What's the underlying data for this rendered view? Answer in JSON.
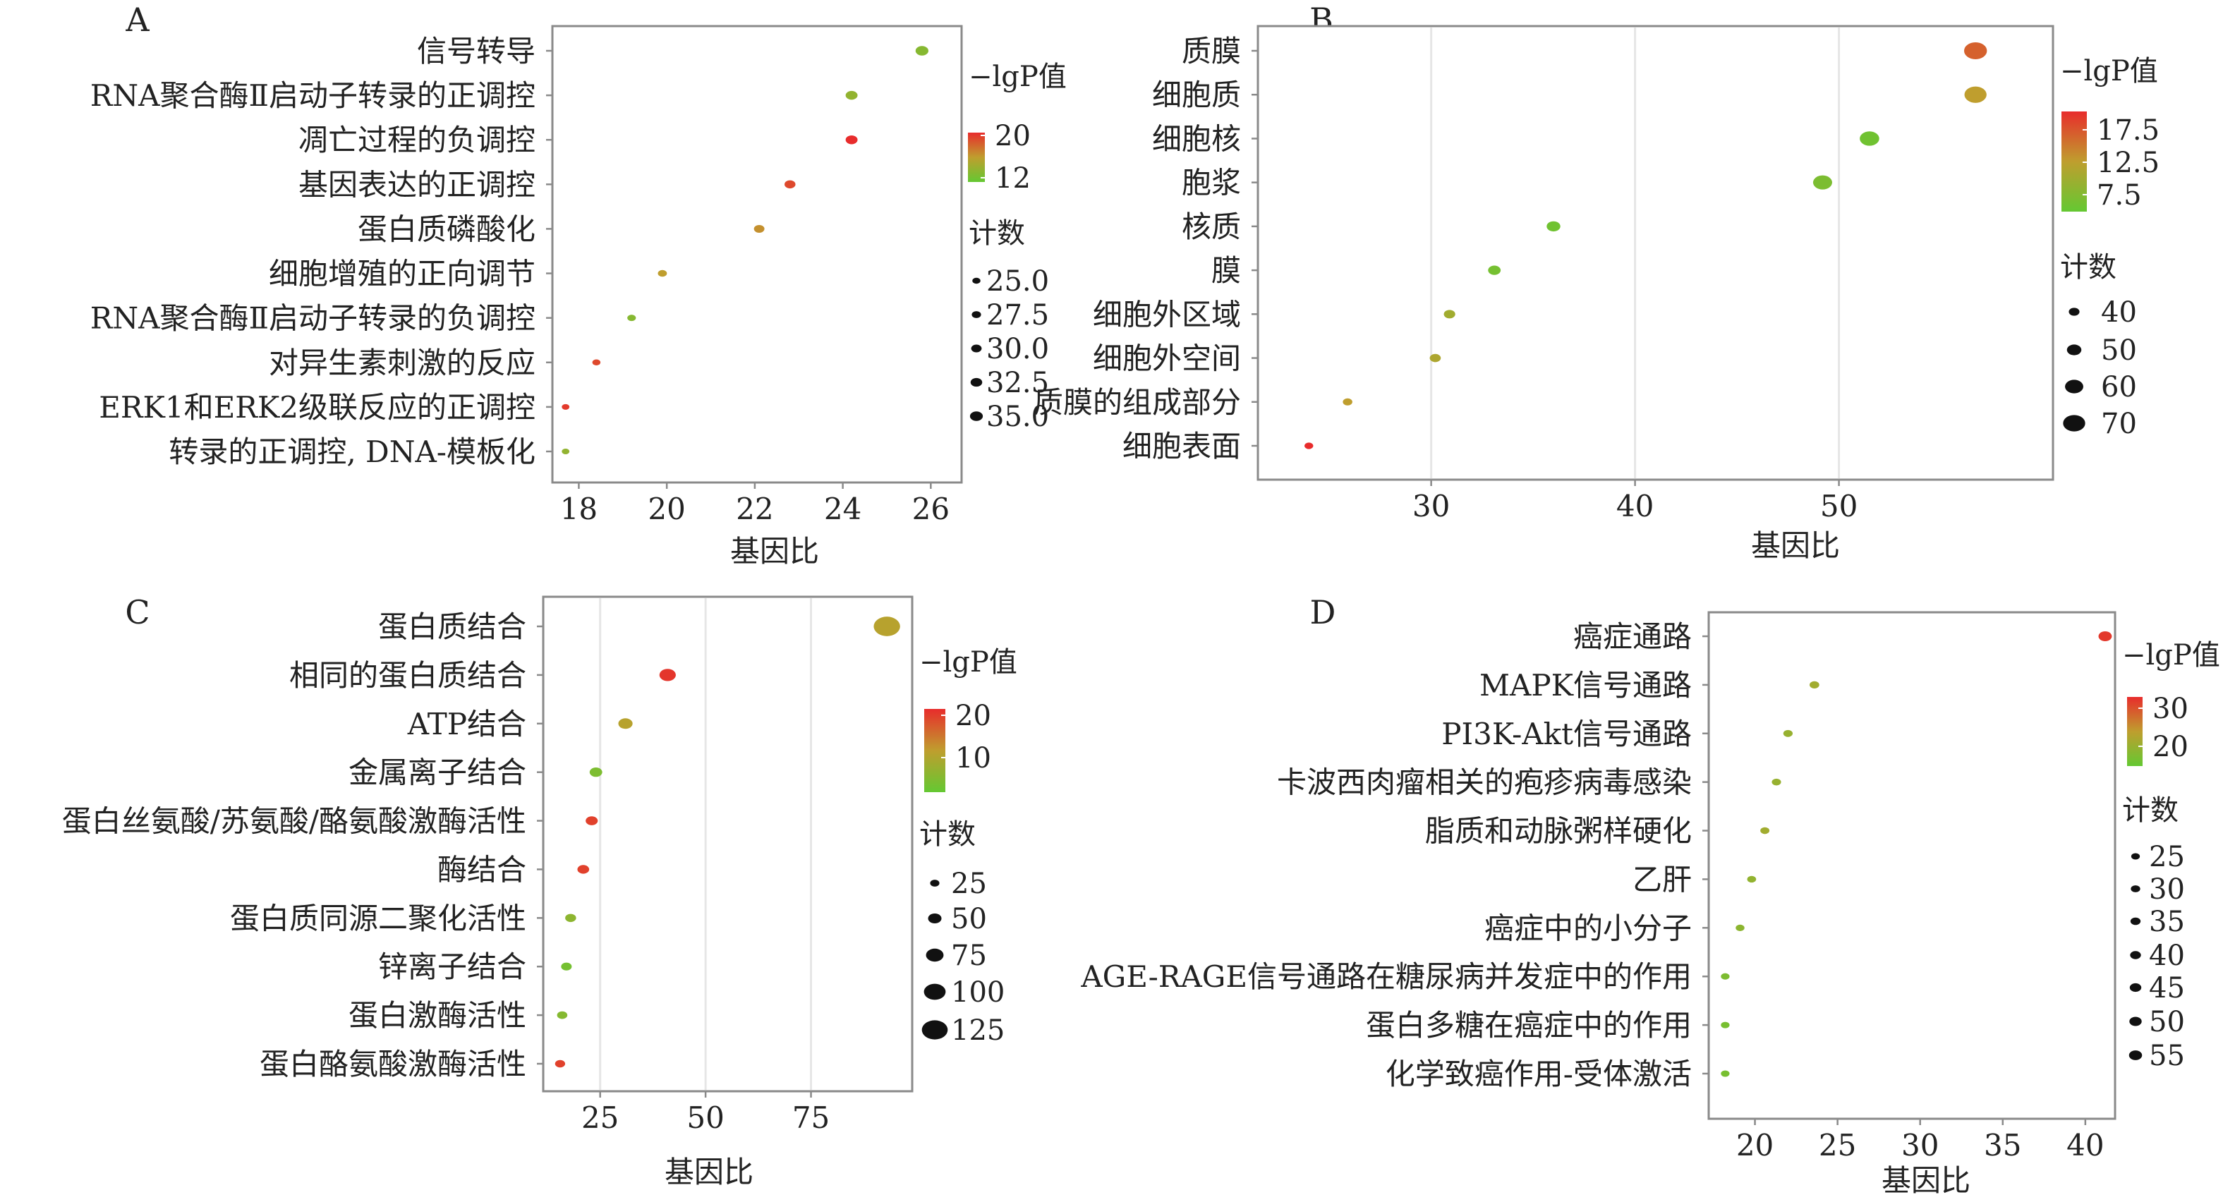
{
  "colors": {
    "low": "#64c832",
    "mid": "#bf9e2e",
    "high": "#e82c2c",
    "dot_key": "#111111"
  },
  "chart_data": [
    {
      "panel": "A",
      "type": "scatter",
      "xlabel": "基因比",
      "xlim": [
        17.4,
        26.7
      ],
      "xticks": [
        18,
        20,
        22,
        24,
        26
      ],
      "grid": false,
      "color_legend_title": "−lgP值",
      "color_scale": [
        12,
        20
      ],
      "color_ticks": [
        "20",
        "12"
      ],
      "size_legend_title": "计数",
      "size_ticks": [
        "25.0",
        "27.5",
        "30.0",
        "32.5",
        "35.0"
      ],
      "size_range": [
        24,
        36
      ],
      "categories": [
        "信号转导",
        "RNA聚合酶Ⅱ启动子转录的正调控",
        "凋亡过程的负调控",
        "基因表达的正调控",
        "蛋白质磷酸化",
        "细胞增殖的正向调节",
        "RNA聚合酶Ⅱ启动子转录的负调控",
        "对异生素刺激的反应",
        "ERK1和ERK2级联反应的正调控",
        "转录的正调控, DNA-模板化"
      ],
      "x": [
        25.8,
        24.2,
        24.2,
        22.8,
        22.1,
        19.9,
        19.2,
        18.4,
        17.7,
        17.7
      ],
      "color_value": [
        13.5,
        14,
        20,
        19,
        16.5,
        16,
        13.5,
        19,
        19.5,
        14
      ],
      "count": [
        35,
        33,
        33,
        31,
        30,
        27,
        26,
        25,
        24,
        24
      ]
    },
    {
      "panel": "B",
      "type": "scatter",
      "xlabel": "基因比",
      "xlim": [
        21.5,
        60.5
      ],
      "xticks": [
        30,
        40,
        50
      ],
      "grid": true,
      "color_legend_title": "−lgP值",
      "color_scale": [
        5,
        20
      ],
      "color_ticks": [
        "17.5",
        "12.5",
        "7.5"
      ],
      "size_legend_title": "计数",
      "size_ticks": [
        "40",
        "50",
        "60",
        "70"
      ],
      "size_range": [
        32,
        72
      ],
      "categories": [
        "质膜",
        "细胞质",
        "细胞核",
        "胞浆",
        "核质",
        "膜",
        "细胞外区域",
        "细胞外空间",
        "质膜的组成部分",
        "细胞表面"
      ],
      "x": [
        56.7,
        56.7,
        51.5,
        49.2,
        36,
        33.1,
        30.9,
        30.2,
        25.9,
        24
      ],
      "color_value": [
        16.5,
        12.5,
        6,
        7,
        6,
        6.5,
        10,
        11,
        12.5,
        20
      ],
      "count": [
        72,
        70,
        63,
        62,
        48,
        45,
        42,
        41,
        37,
        35
      ]
    },
    {
      "panel": "C",
      "type": "scatter",
      "xlabel": "基因比",
      "xlim": [
        11.5,
        99
      ],
      "xticks": [
        25,
        50,
        75
      ],
      "grid": true,
      "color_legend_title": "−lgP值",
      "color_scale": [
        0,
        22
      ],
      "color_ticks": [
        "20",
        "10"
      ],
      "size_legend_title": "计数",
      "size_ticks": [
        "25",
        "50",
        "75",
        "100",
        "125"
      ],
      "size_range": [
        15,
        130
      ],
      "categories": [
        "蛋白质结合",
        "相同的蛋白质结合",
        "ATP结合",
        "金属离子结合",
        "蛋白丝氨酸/苏氨酸/酪氨酸激酶活性",
        "酶结合",
        "蛋白质同源二聚化活性",
        "锌离子结合",
        "蛋白激酶活性",
        "蛋白酪氨酸激酶活性"
      ],
      "x": [
        93,
        41,
        31,
        24,
        23,
        21,
        18,
        17,
        16,
        15.5
      ],
      "color_value": [
        10,
        21,
        10,
        3,
        20,
        20,
        5,
        2,
        4,
        20
      ],
      "count": [
        128,
        68,
        55,
        45,
        42,
        40,
        35,
        33,
        31,
        30
      ]
    },
    {
      "panel": "D",
      "type": "scatter",
      "xlabel": "基因比",
      "xlim": [
        17.2,
        41.8
      ],
      "xticks": [
        20,
        25,
        30,
        35,
        40
      ],
      "grid": false,
      "color_legend_title": "−lgP值",
      "color_scale": [
        15,
        33
      ],
      "color_ticks": [
        "30",
        "20"
      ],
      "size_legend_title": "计数",
      "size_ticks": [
        "25",
        "30",
        "35",
        "40",
        "45",
        "50",
        "55"
      ],
      "size_range": [
        18,
        57
      ],
      "categories": [
        "癌症通路",
        "MAPK信号通路",
        "PI3K-Akt信号通路",
        "卡波西肉瘤相关的疱疹病毒感染",
        "脂质和动脉粥样硬化",
        "乙肝",
        "癌症中的小分子",
        "AGE-RAGE信号通路在糖尿病并发症中的作用",
        "蛋白多糖在癌症中的作用",
        "化学致癌作用-受体激活"
      ],
      "x": [
        41.2,
        23.6,
        22,
        21.3,
        20.6,
        19.8,
        19.1,
        18.2,
        18.2,
        18.2
      ],
      "color_value": [
        32,
        21,
        20,
        20,
        21,
        19.5,
        19,
        17.5,
        17,
        17
      ],
      "count": [
        57,
        32,
        30,
        29,
        28,
        27,
        26,
        25,
        25,
        25
      ]
    }
  ]
}
